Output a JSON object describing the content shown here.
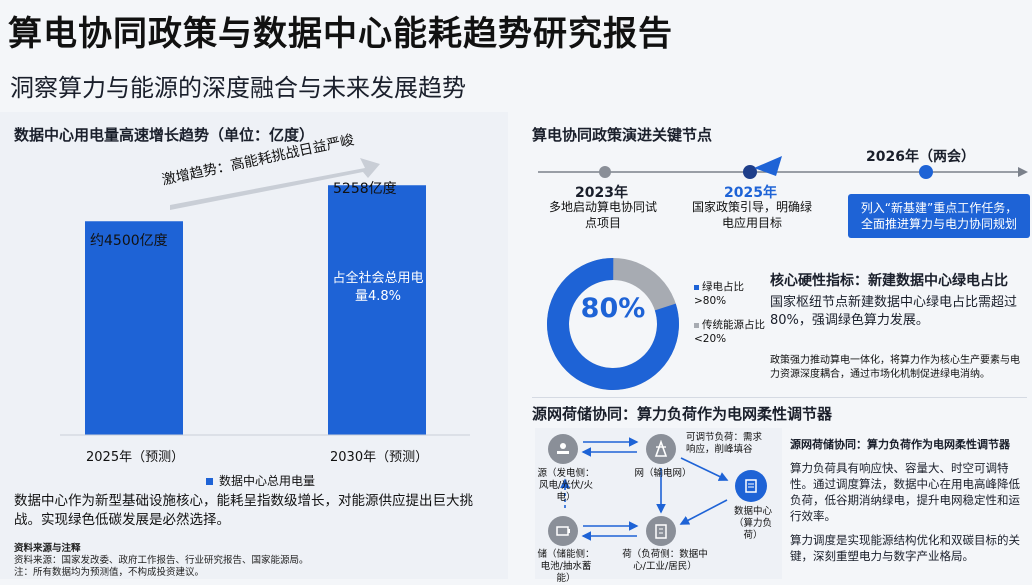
{
  "header": {
    "title": "算电协同政策与数据中心能耗趋势研究报告",
    "subtitle": "洞察算力与能源的深度融合与未来发展趋势"
  },
  "left": {
    "section_title": "数据中心用电量高速增长趋势（单位：亿度）",
    "trend_label": "激增趋势：高能耗挑战日益严峻",
    "bar_value_labels": [
      "约4500亿度",
      "5258亿度"
    ],
    "bar_inner_label": "占全社会总用电量4.8%",
    "legend_label": "数据中心总用电量",
    "description": "数据中心作为新型基础设施核心，能耗呈指数级增长，对能源供应提出巨大挑战。实现绿色低碳发展是必然选择。",
    "sources_title": "资料来源与注释",
    "sources_line1": "资料来源：国家发改委、政府工作报告、行业研究报告、国家能源局。",
    "sources_line2": "注：所有数据均为预测值，不构成投资建议。"
  },
  "chart_data": {
    "type": "bar",
    "categories": [
      "2025年（预测）",
      "2030年（预测）"
    ],
    "series": [
      {
        "name": "数据中心总用电量",
        "values": [
          4500,
          5258
        ]
      }
    ],
    "ylim": [
      0,
      6000
    ],
    "bar_color": "#1e63d6"
  },
  "timeline": {
    "title": "算电协同政策演进关键节点",
    "items": [
      {
        "year": "2023年",
        "text": "多地启动算电协同试点项目"
      },
      {
        "year": "2025年",
        "text": "国家政策引导，明确绿电应用目标"
      },
      {
        "year": "2026年（两会）",
        "text": "列入“新基建”重点工作任务，全面推进算力与电力协同规划"
      }
    ]
  },
  "donut": {
    "center_label": "80%",
    "green_value": 80,
    "green_label": "绿电占比 >80%",
    "traditional_label": "传统能源占比 <20%",
    "heading": "核心硬性指标：新建数据中心绿电占比",
    "text": "国家枢纽节点新建数据中心绿电占比需超过80%，强调绿色算力发展。",
    "note": "政策强力推动算电一体化，将算力作为核心生产要素与电力资源深度耦合，通过市场化机制促进绿电消纳。",
    "colors": {
      "green": "#1e63d6",
      "traditional": "#a7abb2"
    }
  },
  "grid": {
    "title": "源网荷储协同：算力负荷作为电网柔性调节器",
    "source_label": "源（发电侧：风电/光伏/火电）",
    "grid_label": "网（输电网）",
    "load_label": "荷（负荷侧：数据中心/工业/居民）",
    "storage_label": "储（储能侧：电池/抽水蓄能）",
    "adjustable_label": "可调节负荷：需求响应，削峰填谷",
    "dc_label": "数据中心（算力负荷）",
    "side_heading": "源网荷储协同：算力负荷作为电网柔性调节器",
    "side_text": "算力负荷具有响应快、容量大、时空可调特性。通过调度算法，数据中心在用电高峰降低负荷，低谷期消纳绿电，提升电网稳定性和运行效率。",
    "side_footer": "算力调度是实现能源结构优化和双碳目标的关键，深刻重塑电力与数字产业格局。"
  }
}
